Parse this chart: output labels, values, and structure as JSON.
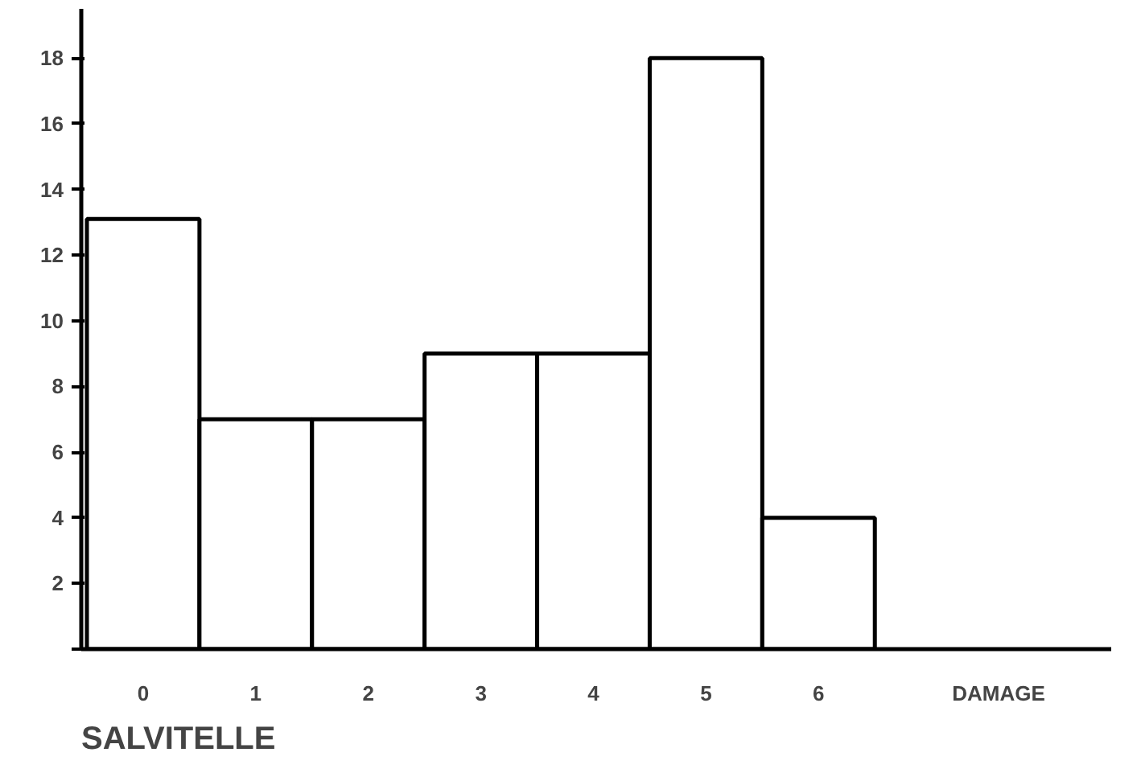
{
  "chart_data": {
    "type": "bar",
    "title": "SALVITELLE",
    "xlabel": "DAMAGE",
    "categories": [
      "0",
      "1",
      "2",
      "3",
      "4",
      "5",
      "6"
    ],
    "values": [
      13.1,
      7,
      7,
      9,
      9,
      18,
      4
    ],
    "color": "#ffffff",
    "ylim": [
      0,
      19.5
    ],
    "yticks": [
      {
        "value": 0,
        "label": null
      },
      2,
      4,
      6,
      8,
      10,
      12,
      14,
      16,
      18
    ],
    "grid": false
  }
}
